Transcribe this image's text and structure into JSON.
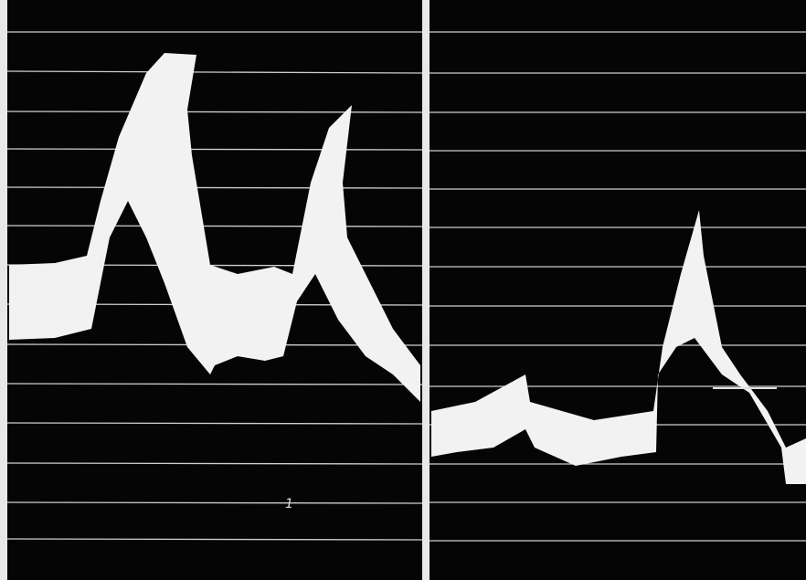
{
  "panels": [
    {
      "label": "1"
    }
  ]
}
